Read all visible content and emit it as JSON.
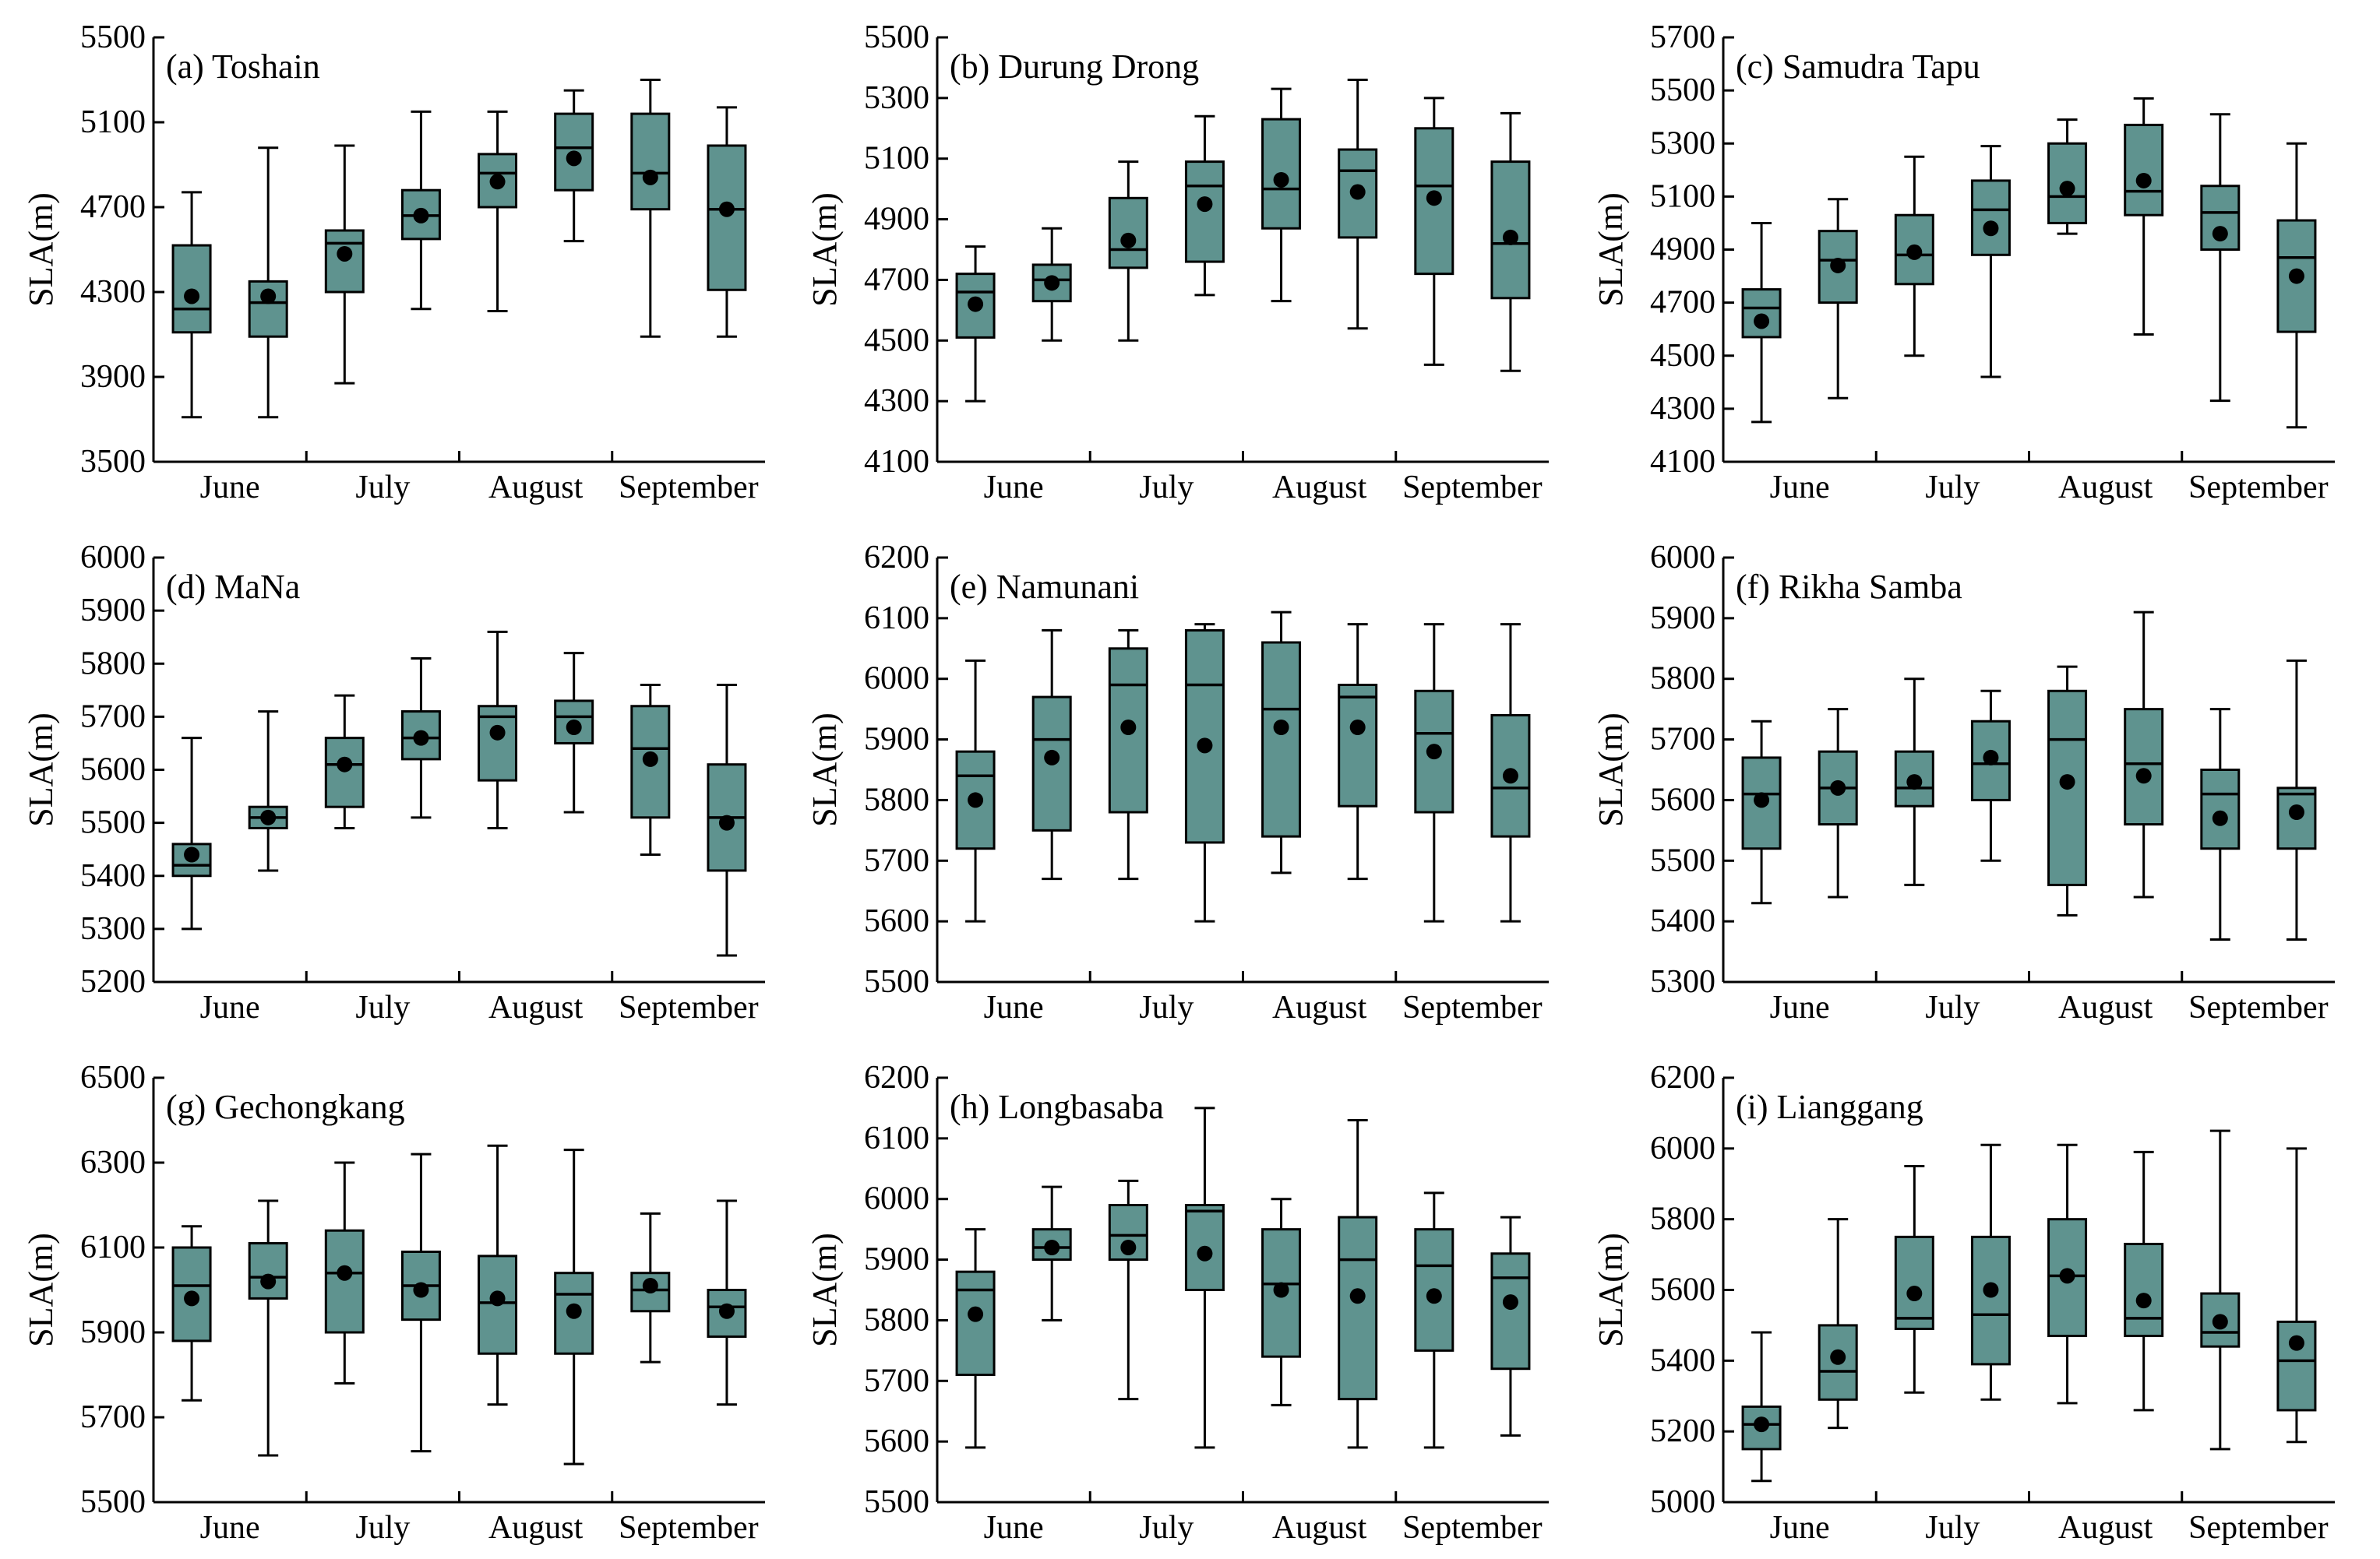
{
  "chart_data": [
    {
      "id": "a",
      "title": "(a) Toshain",
      "type": "box",
      "ylabel": "SLA(m)",
      "ylim": [
        3500,
        5500
      ],
      "yticks": [
        3500,
        3900,
        4300,
        4700,
        5100,
        5500
      ],
      "months": [
        "June",
        "July",
        "August",
        "September"
      ],
      "boxes": [
        {
          "min": 3710,
          "q1": 4110,
          "median": 4220,
          "q3": 4520,
          "max": 4770,
          "mean": 4280
        },
        {
          "min": 3710,
          "q1": 4090,
          "median": 4250,
          "q3": 4350,
          "max": 4980,
          "mean": 4280
        },
        {
          "min": 3870,
          "q1": 4300,
          "median": 4530,
          "q3": 4590,
          "max": 4990,
          "mean": 4480
        },
        {
          "min": 4220,
          "q1": 4550,
          "median": 4660,
          "q3": 4780,
          "max": 5150,
          "mean": 4660
        },
        {
          "min": 4210,
          "q1": 4700,
          "median": 4860,
          "q3": 4950,
          "max": 5150,
          "mean": 4820
        },
        {
          "min": 4540,
          "q1": 4780,
          "median": 4980,
          "q3": 5140,
          "max": 5250,
          "mean": 4930
        },
        {
          "min": 4090,
          "q1": 4690,
          "median": 4860,
          "q3": 5140,
          "max": 5300,
          "mean": 4840
        },
        {
          "min": 4090,
          "q1": 4310,
          "median": 4690,
          "q3": 4990,
          "max": 5170,
          "mean": 4690
        }
      ]
    },
    {
      "id": "b",
      "title": "(b) Durung Drong",
      "type": "box",
      "ylabel": "SLA(m)",
      "ylim": [
        4100,
        5500
      ],
      "yticks": [
        4100,
        4300,
        4500,
        4700,
        4900,
        5100,
        5300,
        5500
      ],
      "months": [
        "June",
        "July",
        "August",
        "September"
      ],
      "boxes": [
        {
          "min": 4300,
          "q1": 4510,
          "median": 4660,
          "q3": 4720,
          "max": 4810,
          "mean": 4620
        },
        {
          "min": 4500,
          "q1": 4630,
          "median": 4700,
          "q3": 4750,
          "max": 4870,
          "mean": 4690
        },
        {
          "min": 4500,
          "q1": 4740,
          "median": 4800,
          "q3": 4970,
          "max": 5090,
          "mean": 4830
        },
        {
          "min": 4650,
          "q1": 4760,
          "median": 5010,
          "q3": 5090,
          "max": 5240,
          "mean": 4950
        },
        {
          "min": 4630,
          "q1": 4870,
          "median": 5000,
          "q3": 5230,
          "max": 5330,
          "mean": 5030
        },
        {
          "min": 4540,
          "q1": 4840,
          "median": 5060,
          "q3": 5130,
          "max": 5360,
          "mean": 4990
        },
        {
          "min": 4420,
          "q1": 4720,
          "median": 5010,
          "q3": 5200,
          "max": 5300,
          "mean": 4970
        },
        {
          "min": 4400,
          "q1": 4640,
          "median": 4820,
          "q3": 5090,
          "max": 5250,
          "mean": 4840
        }
      ]
    },
    {
      "id": "c",
      "title": "(c) Samudra Tapu",
      "type": "box",
      "ylabel": "SLA(m)",
      "ylim": [
        4100,
        5700
      ],
      "yticks": [
        4100,
        4300,
        4500,
        4700,
        4900,
        5100,
        5300,
        5500,
        5700
      ],
      "months": [
        "June",
        "July",
        "August",
        "September"
      ],
      "boxes": [
        {
          "min": 4250,
          "q1": 4570,
          "median": 4680,
          "q3": 4750,
          "max": 5000,
          "mean": 4630
        },
        {
          "min": 4340,
          "q1": 4700,
          "median": 4860,
          "q3": 4970,
          "max": 5090,
          "mean": 4840
        },
        {
          "min": 4500,
          "q1": 4770,
          "median": 4880,
          "q3": 5030,
          "max": 5250,
          "mean": 4890
        },
        {
          "min": 4420,
          "q1": 4880,
          "median": 5050,
          "q3": 5160,
          "max": 5290,
          "mean": 4980
        },
        {
          "min": 4960,
          "q1": 5000,
          "median": 5100,
          "q3": 5300,
          "max": 5390,
          "mean": 5130
        },
        {
          "min": 4580,
          "q1": 5030,
          "median": 5120,
          "q3": 5370,
          "max": 5470,
          "mean": 5160
        },
        {
          "min": 4330,
          "q1": 4900,
          "median": 5040,
          "q3": 5140,
          "max": 5410,
          "mean": 4960
        },
        {
          "min": 4230,
          "q1": 4590,
          "median": 4870,
          "q3": 5010,
          "max": 5300,
          "mean": 4800
        }
      ]
    },
    {
      "id": "d",
      "title": "(d) MaNa",
      "type": "box",
      "ylabel": "SLA(m)",
      "ylim": [
        5200,
        6000
      ],
      "yticks": [
        5200,
        5300,
        5400,
        5500,
        5600,
        5700,
        5800,
        5900,
        6000
      ],
      "months": [
        "June",
        "July",
        "August",
        "September"
      ],
      "boxes": [
        {
          "min": 5300,
          "q1": 5400,
          "median": 5420,
          "q3": 5460,
          "max": 5660,
          "mean": 5440
        },
        {
          "min": 5410,
          "q1": 5490,
          "median": 5510,
          "q3": 5530,
          "max": 5710,
          "mean": 5510
        },
        {
          "min": 5490,
          "q1": 5530,
          "median": 5610,
          "q3": 5660,
          "max": 5740,
          "mean": 5610
        },
        {
          "min": 5510,
          "q1": 5620,
          "median": 5660,
          "q3": 5710,
          "max": 5810,
          "mean": 5660
        },
        {
          "min": 5490,
          "q1": 5580,
          "median": 5700,
          "q3": 5720,
          "max": 5860,
          "mean": 5670
        },
        {
          "min": 5520,
          "q1": 5650,
          "median": 5700,
          "q3": 5730,
          "max": 5820,
          "mean": 5680
        },
        {
          "min": 5440,
          "q1": 5510,
          "median": 5640,
          "q3": 5720,
          "max": 5760,
          "mean": 5620
        },
        {
          "min": 5250,
          "q1": 5410,
          "median": 5510,
          "q3": 5610,
          "max": 5760,
          "mean": 5500
        }
      ]
    },
    {
      "id": "e",
      "title": "(e) Namunani",
      "type": "box",
      "ylabel": "SLA(m)",
      "ylim": [
        5500,
        6200
      ],
      "yticks": [
        5500,
        5600,
        5700,
        5800,
        5900,
        6000,
        6100,
        6200
      ],
      "months": [
        "June",
        "July",
        "August",
        "September"
      ],
      "boxes": [
        {
          "min": 5600,
          "q1": 5720,
          "median": 5840,
          "q3": 5880,
          "max": 6030,
          "mean": 5800
        },
        {
          "min": 5670,
          "q1": 5750,
          "median": 5900,
          "q3": 5970,
          "max": 6080,
          "mean": 5870
        },
        {
          "min": 5670,
          "q1": 5780,
          "median": 5990,
          "q3": 6050,
          "max": 6080,
          "mean": 5920
        },
        {
          "min": 5600,
          "q1": 5730,
          "median": 5990,
          "q3": 6080,
          "max": 6090,
          "mean": 5890
        },
        {
          "min": 5680,
          "q1": 5740,
          "median": 5950,
          "q3": 6060,
          "max": 6110,
          "mean": 5920
        },
        {
          "min": 5670,
          "q1": 5790,
          "median": 5970,
          "q3": 5990,
          "max": 6090,
          "mean": 5920
        },
        {
          "min": 5600,
          "q1": 5780,
          "median": 5910,
          "q3": 5980,
          "max": 6090,
          "mean": 5880
        },
        {
          "min": 5600,
          "q1": 5740,
          "median": 5820,
          "q3": 5940,
          "max": 6090,
          "mean": 5840
        }
      ]
    },
    {
      "id": "f",
      "title": "(f) Rikha Samba",
      "type": "box",
      "ylabel": "SLA(m)",
      "ylim": [
        5300,
        6000
      ],
      "yticks": [
        5300,
        5400,
        5500,
        5600,
        5700,
        5800,
        5900,
        6000
      ],
      "months": [
        "June",
        "July",
        "August",
        "September"
      ],
      "boxes": [
        {
          "min": 5430,
          "q1": 5520,
          "median": 5610,
          "q3": 5670,
          "max": 5730,
          "mean": 5600
        },
        {
          "min": 5440,
          "q1": 5560,
          "median": 5620,
          "q3": 5680,
          "max": 5750,
          "mean": 5620
        },
        {
          "min": 5460,
          "q1": 5590,
          "median": 5620,
          "q3": 5680,
          "max": 5800,
          "mean": 5630
        },
        {
          "min": 5500,
          "q1": 5600,
          "median": 5660,
          "q3": 5730,
          "max": 5780,
          "mean": 5670
        },
        {
          "min": 5410,
          "q1": 5460,
          "median": 5700,
          "q3": 5780,
          "max": 5820,
          "mean": 5630
        },
        {
          "min": 5440,
          "q1": 5560,
          "median": 5660,
          "q3": 5750,
          "max": 5910,
          "mean": 5640
        },
        {
          "min": 5370,
          "q1": 5520,
          "median": 5610,
          "q3": 5650,
          "max": 5750,
          "mean": 5570
        },
        {
          "min": 5370,
          "q1": 5520,
          "median": 5610,
          "q3": 5620,
          "max": 5830,
          "mean": 5580
        }
      ]
    },
    {
      "id": "g",
      "title": "(g) Gechongkang",
      "type": "box",
      "ylabel": "SLA(m)",
      "ylim": [
        5500,
        6500
      ],
      "yticks": [
        5500,
        5700,
        5900,
        6100,
        6300,
        6500
      ],
      "months": [
        "June",
        "July",
        "August",
        "September"
      ],
      "boxes": [
        {
          "min": 5740,
          "q1": 5880,
          "median": 6010,
          "q3": 6100,
          "max": 6150,
          "mean": 5980
        },
        {
          "min": 5610,
          "q1": 5980,
          "median": 6030,
          "q3": 6110,
          "max": 6210,
          "mean": 6020
        },
        {
          "min": 5780,
          "q1": 5900,
          "median": 6040,
          "q3": 6140,
          "max": 6300,
          "mean": 6040
        },
        {
          "min": 5620,
          "q1": 5930,
          "median": 6010,
          "q3": 6090,
          "max": 6320,
          "mean": 6000
        },
        {
          "min": 5730,
          "q1": 5850,
          "median": 5970,
          "q3": 6080,
          "max": 6340,
          "mean": 5980
        },
        {
          "min": 5590,
          "q1": 5850,
          "median": 5990,
          "q3": 6040,
          "max": 6330,
          "mean": 5950
        },
        {
          "min": 5830,
          "q1": 5950,
          "median": 6000,
          "q3": 6040,
          "max": 6180,
          "mean": 6010
        },
        {
          "min": 5730,
          "q1": 5890,
          "median": 5960,
          "q3": 6000,
          "max": 6210,
          "mean": 5950
        }
      ]
    },
    {
      "id": "h",
      "title": "(h) Longbasaba",
      "type": "box",
      "ylabel": "SLA(m)",
      "ylim": [
        5500,
        6200
      ],
      "yticks": [
        5500,
        5600,
        5700,
        5800,
        5900,
        6000,
        6100,
        6200
      ],
      "months": [
        "June",
        "July",
        "August",
        "September"
      ],
      "boxes": [
        {
          "min": 5590,
          "q1": 5710,
          "median": 5850,
          "q3": 5880,
          "max": 5950,
          "mean": 5810
        },
        {
          "min": 5800,
          "q1": 5900,
          "median": 5920,
          "q3": 5950,
          "max": 6020,
          "mean": 5920
        },
        {
          "min": 5670,
          "q1": 5900,
          "median": 5940,
          "q3": 5990,
          "max": 6030,
          "mean": 5920
        },
        {
          "min": 5590,
          "q1": 5850,
          "median": 5980,
          "q3": 5990,
          "max": 6150,
          "mean": 5910
        },
        {
          "min": 5660,
          "q1": 5740,
          "median": 5860,
          "q3": 5950,
          "max": 6000,
          "mean": 5850
        },
        {
          "min": 5590,
          "q1": 5670,
          "median": 5900,
          "q3": 5970,
          "max": 6130,
          "mean": 5840
        },
        {
          "min": 5590,
          "q1": 5750,
          "median": 5890,
          "q3": 5950,
          "max": 6010,
          "mean": 5840
        },
        {
          "min": 5610,
          "q1": 5720,
          "median": 5870,
          "q3": 5910,
          "max": 5970,
          "mean": 5830
        }
      ]
    },
    {
      "id": "i",
      "title": "(i) Lianggang",
      "type": "box",
      "ylabel": "SLA(m)",
      "ylim": [
        5000,
        6200
      ],
      "yticks": [
        5000,
        5200,
        5400,
        5600,
        5800,
        6000,
        6200
      ],
      "months": [
        "June",
        "July",
        "August",
        "September"
      ],
      "boxes": [
        {
          "min": 5060,
          "q1": 5150,
          "median": 5220,
          "q3": 5270,
          "max": 5480,
          "mean": 5220
        },
        {
          "min": 5210,
          "q1": 5290,
          "median": 5370,
          "q3": 5500,
          "max": 5800,
          "mean": 5410
        },
        {
          "min": 5310,
          "q1": 5490,
          "median": 5520,
          "q3": 5750,
          "max": 5950,
          "mean": 5590
        },
        {
          "min": 5290,
          "q1": 5390,
          "median": 5530,
          "q3": 5750,
          "max": 6010,
          "mean": 5600
        },
        {
          "min": 5280,
          "q1": 5470,
          "median": 5640,
          "q3": 5800,
          "max": 6010,
          "mean": 5640
        },
        {
          "min": 5260,
          "q1": 5470,
          "median": 5520,
          "q3": 5730,
          "max": 5990,
          "mean": 5570
        },
        {
          "min": 5150,
          "q1": 5440,
          "median": 5480,
          "q3": 5590,
          "max": 6050,
          "mean": 5510
        },
        {
          "min": 5170,
          "q1": 5260,
          "median": 5400,
          "q3": 5510,
          "max": 6000,
          "mean": 5450
        }
      ]
    }
  ],
  "colors": {
    "box_fill": "#5f938f",
    "stroke": "#000000",
    "mean_marker": "#000000",
    "background": "#ffffff"
  }
}
